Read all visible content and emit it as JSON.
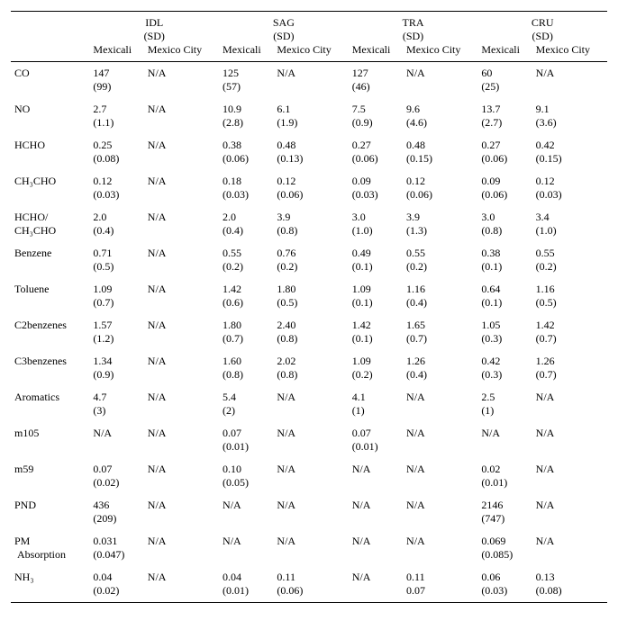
{
  "header": {
    "groups": [
      "IDL",
      "SAG",
      "TRA",
      "CRU"
    ],
    "sd": "(SD)",
    "sub": [
      "Mexicali",
      "Mexico City"
    ]
  },
  "rows": [
    {
      "name": "CO",
      "idl_m": "147",
      "idl_m_sd": "(99)",
      "idl_c": "N/A",
      "sag_m": "125",
      "sag_m_sd": "(57)",
      "sag_c": "N/A",
      "sag_c_sd": "",
      "tra_m": "127",
      "tra_m_sd": "(46)",
      "tra_c": "N/A",
      "tra_c_sd": "",
      "cru_m": "60",
      "cru_m_sd": "(25)",
      "cru_c": "N/A",
      "cru_c_sd": ""
    },
    {
      "name": "NO",
      "idl_m": "2.7",
      "idl_m_sd": "(1.1)",
      "idl_c": "N/A",
      "sag_m": "10.9",
      "sag_m_sd": "(2.8)",
      "sag_c": "6.1",
      "sag_c_sd": "(1.9)",
      "tra_m": "7.5",
      "tra_m_sd": "(0.9)",
      "tra_c": "9.6",
      "tra_c_sd": "(4.6)",
      "cru_m": "13.7",
      "cru_m_sd": "(2.7)",
      "cru_c": "9.1",
      "cru_c_sd": "(3.6)"
    },
    {
      "name": "HCHO",
      "idl_m": "0.25",
      "idl_m_sd": "(0.08)",
      "idl_c": "N/A",
      "sag_m": "0.38",
      "sag_m_sd": "(0.06)",
      "sag_c": "0.48",
      "sag_c_sd": "(0.13)",
      "tra_m": "0.27",
      "tra_m_sd": "(0.06)",
      "tra_c": "0.48",
      "tra_c_sd": "(0.15)",
      "cru_m": "0.27",
      "cru_m_sd": "(0.06)",
      "cru_c": "0.42",
      "cru_c_sd": "(0.15)"
    },
    {
      "name": "CH₃CHO",
      "idl_m": "0.12",
      "idl_m_sd": "(0.03)",
      "idl_c": "N/A",
      "sag_m": "0.18",
      "sag_m_sd": "(0.03)",
      "sag_c": "0.12",
      "sag_c_sd": "(0.06)",
      "tra_m": "0.09",
      "tra_m_sd": "(0.03)",
      "tra_c": "0.12",
      "tra_c_sd": "(0.06)",
      "cru_m": "0.09",
      "cru_m_sd": "(0.06)",
      "cru_c": "0.12",
      "cru_c_sd": "(0.03)"
    },
    {
      "name": "HCHO/\nCH₃CHO",
      "idl_m": "2.0",
      "idl_m_sd": "(0.4)",
      "idl_c": "N/A",
      "sag_m": "2.0",
      "sag_m_sd": "(0.4)",
      "sag_c": "3.9",
      "sag_c_sd": "(0.8)",
      "tra_m": "3.0",
      "tra_m_sd": "(1.0)",
      "tra_c": "3.9",
      "tra_c_sd": "(1.3)",
      "cru_m": "3.0",
      "cru_m_sd": "(0.8)",
      "cru_c": "3.4",
      "cru_c_sd": "(1.0)"
    },
    {
      "name": "Benzene",
      "idl_m": "0.71",
      "idl_m_sd": "(0.5)",
      "idl_c": "N/A",
      "sag_m": "0.55",
      "sag_m_sd": "(0.2)",
      "sag_c": "0.76",
      "sag_c_sd": "(0.2)",
      "tra_m": "0.49",
      "tra_m_sd": "(0.1)",
      "tra_c": "0.55",
      "tra_c_sd": "(0.2)",
      "cru_m": "0.38",
      "cru_m_sd": "(0.1)",
      "cru_c": "0.55",
      "cru_c_sd": "(0.2)"
    },
    {
      "name": "Toluene",
      "idl_m": "1.09",
      "idl_m_sd": "(0.7)",
      "idl_c": "N/A",
      "sag_m": "1.42",
      "sag_m_sd": "(0.6)",
      "sag_c": "1.80",
      "sag_c_sd": "(0.5)",
      "tra_m": "1.09",
      "tra_m_sd": "(0.1)",
      "tra_c": "1.16",
      "tra_c_sd": "(0.4)",
      "cru_m": "0.64",
      "cru_m_sd": "(0.1)",
      "cru_c": "1.16",
      "cru_c_sd": "(0.5)"
    },
    {
      "name": "C2benzenes",
      "idl_m": "1.57",
      "idl_m_sd": "(1.2)",
      "idl_c": "N/A",
      "sag_m": "1.80",
      "sag_m_sd": "(0.7)",
      "sag_c": "2.40",
      "sag_c_sd": "(0.8)",
      "tra_m": "1.42",
      "tra_m_sd": "(0.1)",
      "tra_c": "1.65",
      "tra_c_sd": "(0.7)",
      "cru_m": "1.05",
      "cru_m_sd": "(0.3)",
      "cru_c": "1.42",
      "cru_c_sd": "(0.7)"
    },
    {
      "name": "C3benzenes",
      "idl_m": "1.34",
      "idl_m_sd": "(0.9)",
      "idl_c": "N/A",
      "sag_m": "1.60",
      "sag_m_sd": "(0.8)",
      "sag_c": "2.02",
      "sag_c_sd": "(0.8)",
      "tra_m": "1.09",
      "tra_m_sd": "(0.2)",
      "tra_c": "1.26",
      "tra_c_sd": "(0.4)",
      "cru_m": "0.42",
      "cru_m_sd": "(0.3)",
      "cru_c": "1.26",
      "cru_c_sd": "(0.7)"
    },
    {
      "name": "Aromatics",
      "idl_m": "4.7",
      "idl_m_sd": "(3)",
      "idl_c": "N/A",
      "sag_m": "5.4",
      "sag_m_sd": "(2)",
      "sag_c": "N/A",
      "sag_c_sd": "",
      "tra_m": "4.1",
      "tra_m_sd": "(1)",
      "tra_c": "N/A",
      "tra_c_sd": "",
      "cru_m": "2.5",
      "cru_m_sd": "(1)",
      "cru_c": "N/A",
      "cru_c_sd": ""
    },
    {
      "name": "m105",
      "idl_m": "N/A",
      "idl_m_sd": "",
      "idl_c": "N/A",
      "sag_m": "0.07",
      "sag_m_sd": "(0.01)",
      "sag_c": "N/A",
      "sag_c_sd": "",
      "tra_m": "0.07",
      "tra_m_sd": "(0.01)",
      "tra_c": "N/A",
      "tra_c_sd": "",
      "cru_m": "N/A",
      "cru_m_sd": "",
      "cru_c": "N/A",
      "cru_c_sd": ""
    },
    {
      "name": "m59",
      "idl_m": "0.07",
      "idl_m_sd": "(0.02)",
      "idl_c": "N/A",
      "sag_m": "0.10",
      "sag_m_sd": "(0.05)",
      "sag_c": "N/A",
      "sag_c_sd": "",
      "tra_m": "N/A",
      "tra_m_sd": "",
      "tra_c": "N/A",
      "tra_c_sd": "",
      "cru_m": "0.02",
      "cru_m_sd": "(0.01)",
      "cru_c": "N/A",
      "cru_c_sd": ""
    },
    {
      "name": "PND",
      "idl_m": "436",
      "idl_m_sd": "(209)",
      "idl_c": "N/A",
      "sag_m": "N/A",
      "sag_m_sd": "",
      "sag_c": "N/A",
      "sag_c_sd": "",
      "tra_m": "N/A",
      "tra_m_sd": "",
      "tra_c": "N/A",
      "tra_c_sd": "",
      "cru_m": "2146",
      "cru_m_sd": "(747)",
      "cru_c": "N/A",
      "cru_c_sd": ""
    },
    {
      "name": "PM\n Absorption",
      "idl_m": "0.031",
      "idl_m_sd": "(0.047)",
      "idl_c": "N/A",
      "sag_m": "N/A",
      "sag_m_sd": "",
      "sag_c": "N/A",
      "sag_c_sd": "",
      "tra_m": "N/A",
      "tra_m_sd": "",
      "tra_c": "N/A",
      "tra_c_sd": "",
      "cru_m": "0.069",
      "cru_m_sd": "(0.085)",
      "cru_c": "N/A",
      "cru_c_sd": ""
    },
    {
      "name": "NH₃",
      "idl_m": "0.04",
      "idl_m_sd": "(0.02)",
      "idl_c": "N/A",
      "sag_m": "0.04",
      "sag_m_sd": "(0.01)",
      "sag_c": "0.11",
      "sag_c_sd": "(0.06)",
      "tra_m": "N/A",
      "tra_m_sd": "",
      "tra_c": "0.11",
      "tra_c_sd": "0.07",
      "cru_m": "0.06",
      "cru_m_sd": "(0.03)",
      "cru_c": "0.13",
      "cru_c_sd": "(0.08)"
    }
  ]
}
